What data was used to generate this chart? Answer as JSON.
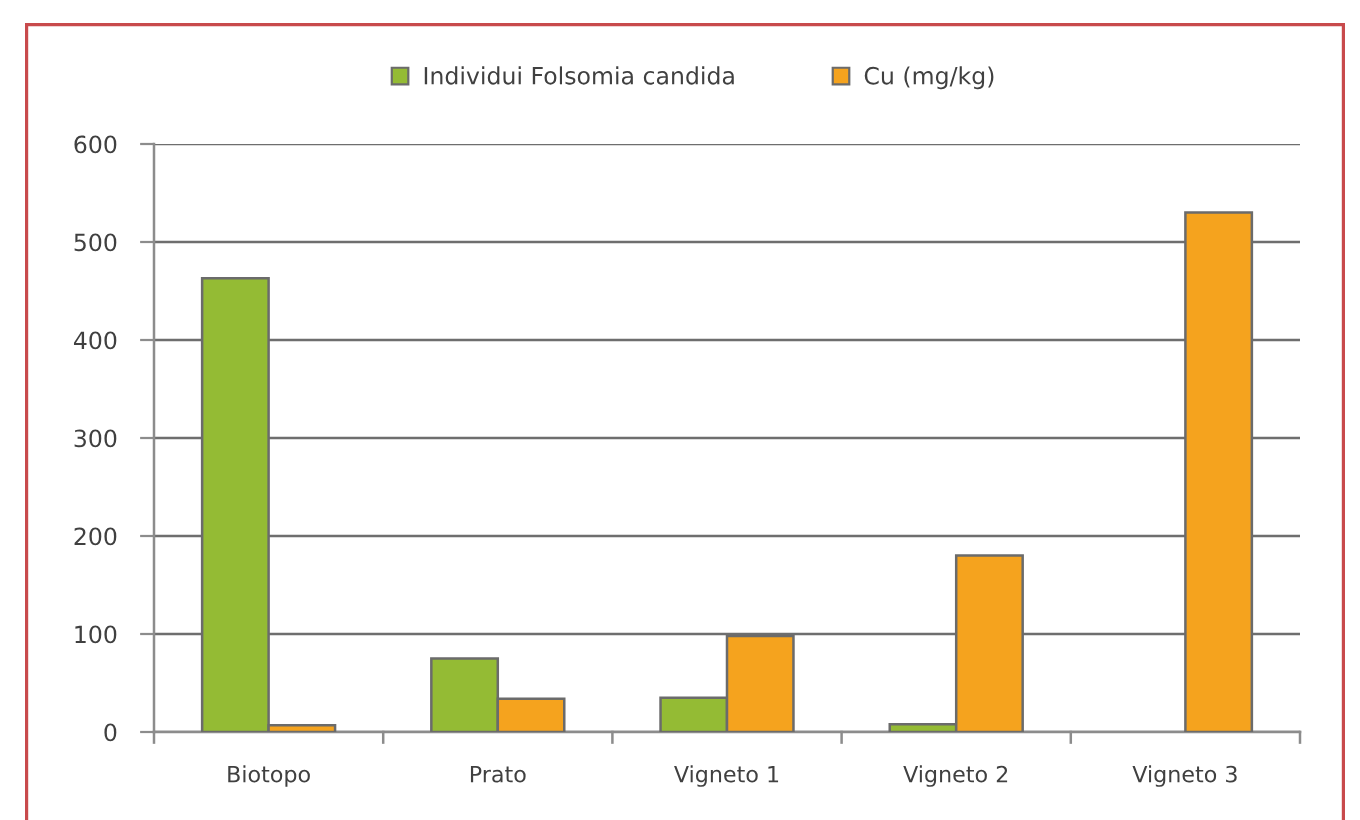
{
  "chart_data": {
    "type": "bar",
    "categories": [
      "Biotopo",
      "Prato",
      "Vigneto 1",
      "Vigneto 2",
      "Vigneto 3"
    ],
    "series": [
      {
        "name": "Individui Folsomia candida",
        "color": "#94bb34",
        "values": [
          463,
          75,
          35,
          8,
          null
        ]
      },
      {
        "name": "Cu (mg/kg)",
        "color": "#f5a31e",
        "values": [
          7,
          34,
          98,
          180,
          530
        ]
      }
    ],
    "ylim": [
      0,
      600
    ],
    "yticks": [
      0,
      100,
      200,
      300,
      400,
      500,
      600
    ],
    "grid": "y",
    "legend": "top"
  }
}
